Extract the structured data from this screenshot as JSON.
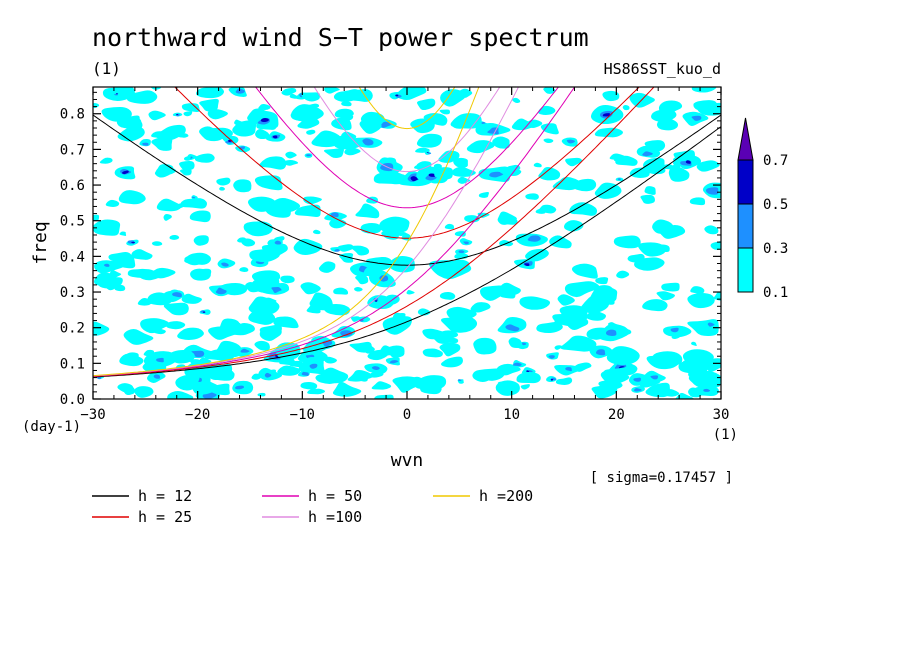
{
  "chart_data": {
    "type": "heatmap",
    "title": "northward wind S−T power spectrum",
    "units_label": "(1)",
    "run_label": "HS86SST_kuo_d",
    "xlabel": "wvn",
    "ylabel": "freq",
    "x_units": "(1)",
    "y_units": "(day-1)",
    "xlim": [
      -30,
      30
    ],
    "ylim": [
      0,
      0.875
    ],
    "xticks": [
      "−30",
      "−20",
      "−10",
      "0",
      "10",
      "20",
      "30"
    ],
    "yticks": [
      "0.0",
      "0.1",
      "0.2",
      "0.3",
      "0.4",
      "0.5",
      "0.6",
      "0.7",
      "0.8"
    ],
    "sigma_text": "[ sigma=0.17457 ]",
    "colorbar": {
      "levels": [
        "0.1",
        "0.3",
        "0.5",
        "0.7"
      ],
      "colors": [
        "#00ffff",
        "#1e90ff",
        "#0000c8",
        "#5a00b4"
      ]
    },
    "dispersion_curves": [
      {
        "name": "h = 12",
        "h": 12,
        "color": "#000000"
      },
      {
        "name": "h = 25",
        "h": 25,
        "color": "#e00000"
      },
      {
        "name": "h = 50",
        "h": 50,
        "color": "#e000b4"
      },
      {
        "name": "h =100",
        "h": 100,
        "color": "#e08ce0"
      },
      {
        "name": "h =200",
        "h": 200,
        "color": "#f0c800"
      }
    ]
  }
}
